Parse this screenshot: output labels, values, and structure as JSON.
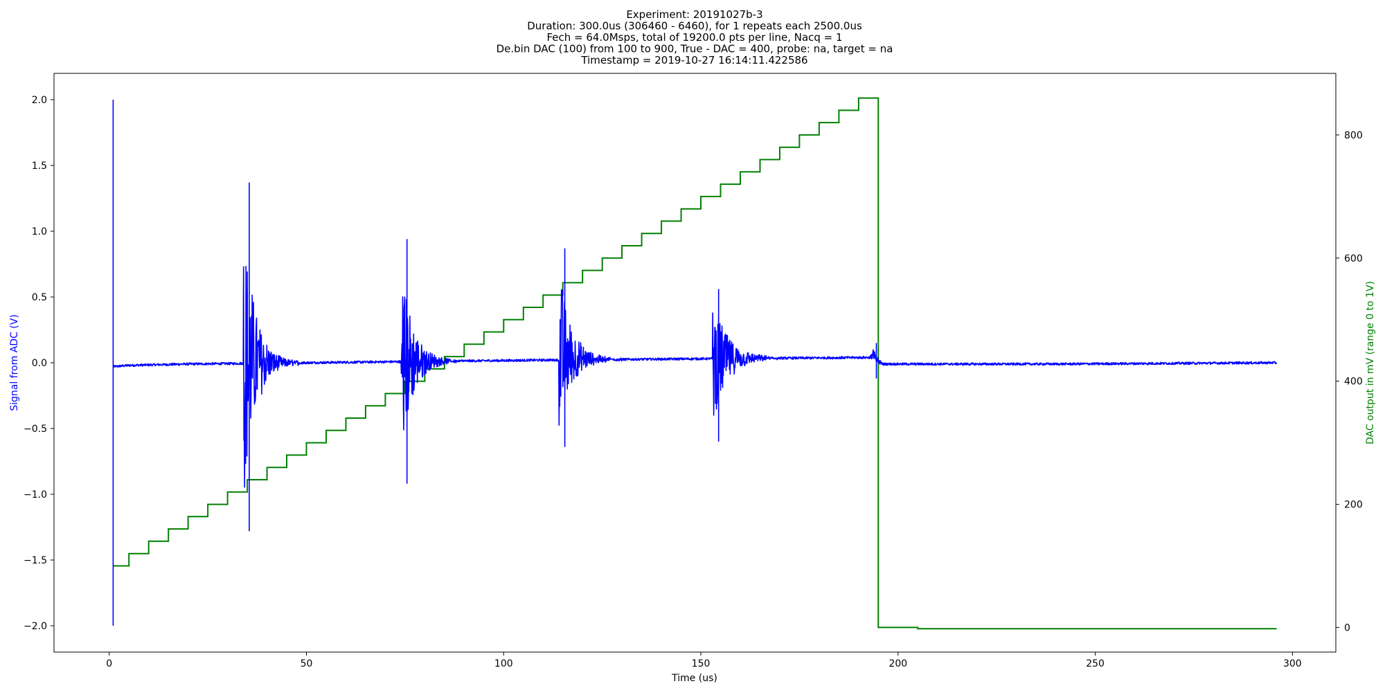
{
  "chart_data": {
    "type": "line",
    "title_lines": [
      "Experiment: 20191027b-3",
      "Duration: 300.0us (306460 - 6460), for 1 repeats each 2500.0us",
      "Fech = 64.0Msps, total of 19200.0 pts per line, Nacq = 1",
      "De.bin DAC (100) from 100 to 900, True - DAC = 400, probe: na, target = na",
      "Timestamp = 2019-10-27 16:14:11.422586"
    ],
    "xlabel": "Time (us)",
    "ylabel_left": "Signal from ADC (V)",
    "ylabel_right": "DAC output in mV (range 0 to 1V)",
    "xlim": [
      -14,
      311
    ],
    "ylim_left": [
      -2.2,
      2.2
    ],
    "ylim_right": [
      -40,
      900
    ],
    "x_ticks": [
      "0",
      "50",
      "100",
      "150",
      "200",
      "250",
      "300"
    ],
    "y_ticks_left": [
      "−2.0",
      "−1.5",
      "−1.0",
      "−0.5",
      "0.0",
      "0.5",
      "1.0",
      "1.5",
      "2.0"
    ],
    "y_ticks_right": [
      "0",
      "200",
      "400",
      "600",
      "800"
    ],
    "grid": false,
    "legend": "none",
    "colors": {
      "adc": "#0000ff",
      "dac": "#008000",
      "left_axis_label": "#0000ff",
      "right_axis_label": "#008000"
    },
    "series": [
      {
        "axis": "right",
        "style": "step",
        "x": [
          1,
          5,
          10,
          15,
          20,
          25,
          30,
          35,
          40,
          45,
          50,
          55,
          60,
          65,
          70,
          75,
          80,
          85,
          90,
          95,
          100,
          105,
          110,
          115,
          120,
          125,
          130,
          135,
          140,
          145,
          150,
          155,
          160,
          165,
          170,
          175,
          180,
          185,
          190,
          195,
          205,
          296
        ],
        "values": [
          100,
          120,
          140,
          160,
          180,
          200,
          220,
          240,
          260,
          280,
          300,
          320,
          340,
          360,
          380,
          400,
          420,
          440,
          460,
          480,
          500,
          520,
          540,
          560,
          580,
          600,
          620,
          640,
          660,
          680,
          700,
          720,
          740,
          760,
          780,
          800,
          820,
          840,
          860,
          0,
          -2,
          -2
        ]
      },
      {
        "axis": "left",
        "style": "signal",
        "baseline": [
          [
            1,
            -0.03
          ],
          [
            5,
            -0.02
          ],
          [
            20,
            -0.01
          ],
          [
            50,
            0.0
          ],
          [
            80,
            0.01
          ],
          [
            110,
            0.02
          ],
          [
            150,
            0.03
          ],
          [
            194,
            0.04
          ],
          [
            196,
            -0.01
          ],
          [
            240,
            -0.01
          ],
          [
            296,
            0.0
          ]
        ],
        "bursts": [
          {
            "x_start": 34,
            "x_end": 50,
            "max": 1.37,
            "min": -1.28,
            "decay": 3.0
          },
          {
            "x_start": 74,
            "x_end": 90,
            "max": 0.94,
            "min": -0.92,
            "decay": 3.0
          },
          {
            "x_start": 114,
            "x_end": 130,
            "max": 0.87,
            "min": -0.64,
            "decay": 3.2
          },
          {
            "x_start": 153,
            "x_end": 170,
            "max": 0.56,
            "min": -0.6,
            "decay": 3.8
          },
          {
            "x_start": 193,
            "x_end": 196,
            "max": 0.15,
            "min": -0.12,
            "decay": 1.0
          }
        ],
        "spike": {
          "x": 1.0,
          "max": 2.0,
          "min": -2.0
        }
      }
    ]
  }
}
